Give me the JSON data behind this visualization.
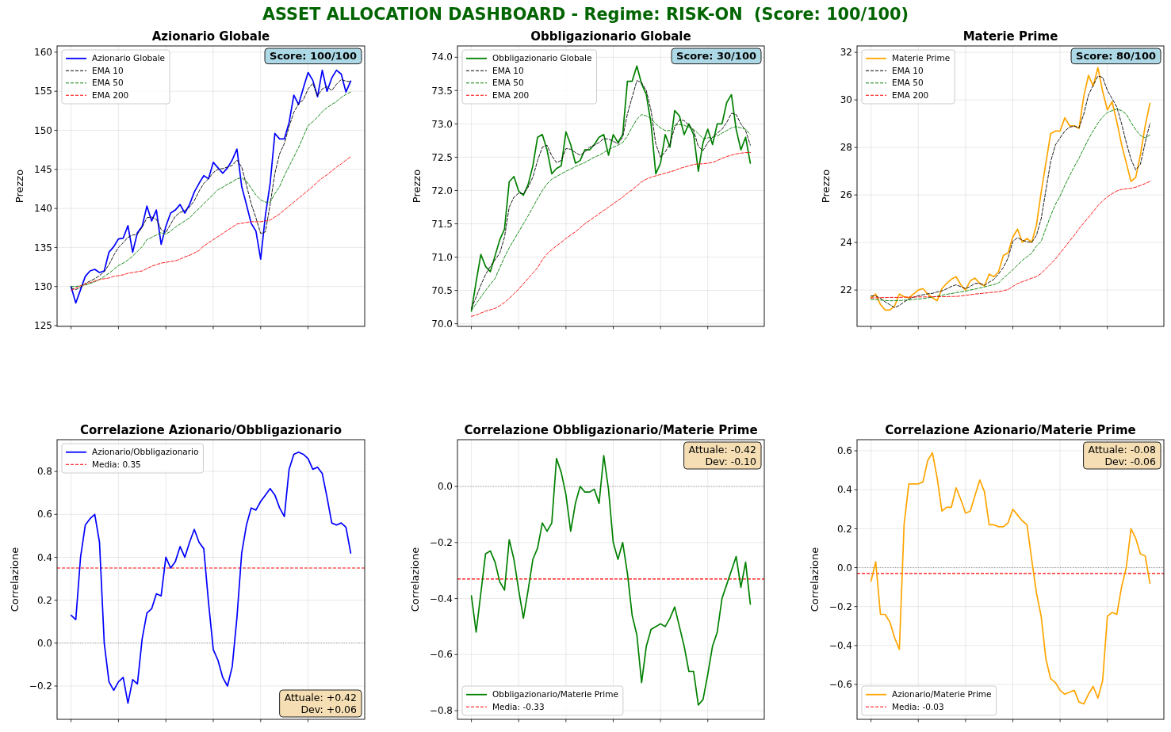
{
  "chart_data": [
    {
      "type": "other",
      "title": "ASSET ALLOCATION DASHBOARD - Regime: RISK-ON  (Score: 100/100)"
    },
    {
      "type": "line",
      "title": "Azionario Globale",
      "ylabel": "Prezzo",
      "categories": [
        null,
        null,
        null,
        null,
        null,
        null,
        null,
        null,
        null,
        null,
        null,
        null,
        null,
        null,
        null,
        null,
        null,
        null,
        null,
        null,
        null,
        null,
        null,
        null,
        null,
        null,
        null,
        null,
        null,
        null,
        null,
        null,
        null,
        null,
        null,
        null,
        null,
        null,
        null,
        null,
        null,
        null,
        null,
        null,
        null,
        null,
        null,
        null,
        null,
        null,
        null,
        null,
        null,
        null,
        null,
        null,
        null,
        null,
        null,
        null
      ],
      "series": [
        {
          "name": "Azionario Globale",
          "color": "#0000ff",
          "values": [
            130.0,
            127.9,
            129.6,
            131.3,
            132.0,
            132.2,
            131.8,
            132.0,
            134.4,
            135.1,
            136.1,
            136.2,
            137.8,
            134.4,
            136.9,
            137.7,
            140.3,
            138.4,
            139.8,
            135.4,
            137.7,
            139.4,
            139.8,
            140.5,
            139.4,
            140.5,
            142.1,
            143.2,
            144.2,
            143.8,
            145.9,
            145.2,
            144.5,
            145.2,
            146.2,
            147.6,
            142.8,
            140.5,
            138.1,
            137.1,
            133.5,
            139.1,
            143.2,
            149.6,
            148.9,
            148.9,
            151.0,
            154.5,
            153.3,
            155.4,
            157.4,
            156.4,
            154.3,
            157.7,
            155.0,
            156.7,
            157.7,
            157.2,
            154.9,
            156.3
          ]
        },
        {
          "name": "EMA 10",
          "color": "#000000",
          "line_style": "dashed",
          "values": [
            129.8,
            129.6,
            129.9,
            130.4,
            130.7,
            131.0,
            131.4,
            131.9,
            132.8,
            134.0,
            135.0,
            135.6,
            136.3,
            136.6,
            136.7,
            137.6,
            138.8,
            138.9,
            138.6,
            137.3,
            136.9,
            138.0,
            139.0,
            139.5,
            139.7,
            140.2,
            141.0,
            142.2,
            143.2,
            143.8,
            144.6,
            145.0,
            145.1,
            145.3,
            145.5,
            146.2,
            145.3,
            143.0,
            140.6,
            138.8,
            136.8,
            137.0,
            140.5,
            144.5,
            147.0,
            148.3,
            150.5,
            152.3,
            153.4,
            153.9,
            155.3,
            156.0,
            154.4,
            155.3,
            155.6,
            155.1,
            155.9,
            156.5,
            156.3,
            156.2
          ]
        },
        {
          "name": "EMA 50",
          "color": "#008000",
          "line_style": "dashed",
          "values": [
            130.0,
            130.0,
            130.1,
            130.2,
            130.4,
            130.6,
            130.9,
            131.3,
            131.7,
            132.2,
            132.7,
            133.0,
            133.4,
            133.9,
            134.5,
            135.1,
            136.0,
            136.3,
            136.6,
            136.9,
            136.7,
            137.1,
            137.6,
            138.0,
            138.4,
            138.8,
            139.4,
            140.0,
            140.6,
            141.2,
            141.8,
            142.4,
            142.7,
            143.1,
            143.4,
            143.8,
            143.9,
            143.5,
            142.6,
            141.7,
            141.1,
            140.8,
            140.8,
            141.9,
            142.8,
            144.2,
            145.4,
            146.6,
            147.8,
            149.2,
            150.6,
            151.1,
            151.7,
            152.4,
            152.9,
            153.3,
            153.7,
            154.2,
            154.6,
            154.9
          ]
        },
        {
          "name": "EMA 200",
          "color": "#ff0000",
          "line_style": "dashed",
          "values": [
            129.5,
            129.8,
            130.1,
            130.3,
            130.5,
            130.7,
            130.9,
            131.0,
            131.1,
            131.3,
            131.4,
            131.5,
            131.7,
            131.8,
            131.9,
            132.0,
            132.3,
            132.6,
            132.8,
            133.0,
            133.1,
            133.2,
            133.3,
            133.5,
            133.8,
            134.0,
            134.3,
            134.6,
            135.2,
            135.6,
            136.0,
            136.4,
            136.8,
            137.2,
            137.6,
            138.0,
            138.1,
            138.2,
            138.3,
            138.3,
            138.3,
            138.4,
            138.5,
            138.9,
            139.3,
            139.8,
            140.3,
            140.8,
            141.3,
            141.8,
            142.3,
            142.8,
            143.4,
            143.9,
            144.3,
            144.8,
            145.3,
            145.7,
            146.2,
            146.6
          ]
        }
      ],
      "ylim": [
        124.9,
        160.8
      ],
      "yticks": [
        125,
        130,
        135,
        140,
        145,
        150,
        155,
        160
      ],
      "grid": true,
      "legend": "top left",
      "annotations": [
        "Score: 100/100"
      ]
    },
    {
      "type": "line",
      "title": "Obbligazionario Globale",
      "ylabel": "Prezzo",
      "categories": [
        null,
        null,
        null,
        null,
        null,
        null,
        null,
        null,
        null,
        null,
        null,
        null,
        null,
        null,
        null,
        null,
        null,
        null,
        null,
        null,
        null,
        null,
        null,
        null,
        null,
        null,
        null,
        null,
        null,
        null,
        null,
        null,
        null,
        null,
        null,
        null,
        null,
        null,
        null,
        null,
        null,
        null,
        null,
        null,
        null,
        null,
        null,
        null,
        null,
        null,
        null,
        null,
        null,
        null,
        null,
        null,
        null,
        null,
        null,
        null
      ],
      "series": [
        {
          "name": "Obbligazionario Globale",
          "color": "#008000",
          "values": [
            70.19,
            70.63,
            71.04,
            70.86,
            70.78,
            71.02,
            71.26,
            71.42,
            72.13,
            72.21,
            71.99,
            71.93,
            72.09,
            72.37,
            72.8,
            72.84,
            72.61,
            72.25,
            72.33,
            72.37,
            72.88,
            72.69,
            72.41,
            72.45,
            72.61,
            72.61,
            72.69,
            72.8,
            72.84,
            72.53,
            72.84,
            72.72,
            72.84,
            73.64,
            73.64,
            73.87,
            73.6,
            73.44,
            73.0,
            72.25,
            72.41,
            72.84,
            72.65,
            73.2,
            73.12,
            72.84,
            73.0,
            72.84,
            72.29,
            72.72,
            72.92,
            72.69,
            73.0,
            73.0,
            73.32,
            73.44,
            72.92,
            72.61,
            72.8,
            72.41
          ]
        },
        {
          "name": "EMA 10",
          "color": "#000000",
          "line_style": "dashed",
          "values": [
            70.23,
            70.4,
            70.58,
            70.74,
            70.86,
            70.96,
            71.06,
            71.3,
            71.75,
            71.9,
            71.96,
            71.95,
            72.05,
            72.2,
            72.45,
            72.65,
            72.68,
            72.52,
            72.42,
            72.45,
            72.63,
            72.62,
            72.57,
            72.53,
            72.58,
            72.65,
            72.68,
            72.72,
            72.78,
            72.77,
            72.74,
            72.7,
            72.8,
            73.15,
            73.4,
            73.65,
            73.62,
            73.5,
            73.2,
            72.7,
            72.5,
            72.58,
            72.7,
            72.95,
            73.06,
            73.05,
            72.98,
            72.9,
            72.66,
            72.6,
            72.72,
            72.8,
            72.86,
            72.92,
            73.02,
            73.16,
            73.14,
            73.0,
            72.9,
            72.68
          ]
        },
        {
          "name": "EMA 50",
          "color": "#008000",
          "line_style": "dashed",
          "values": [
            70.2,
            70.3,
            70.4,
            70.5,
            70.59,
            70.68,
            70.84,
            71.0,
            71.14,
            71.26,
            71.38,
            71.5,
            71.62,
            71.75,
            71.88,
            72.0,
            72.1,
            72.17,
            72.21,
            72.25,
            72.29,
            72.32,
            72.36,
            72.39,
            72.42,
            72.46,
            72.5,
            72.53,
            72.57,
            72.61,
            72.65,
            72.68,
            72.72,
            72.82,
            72.95,
            73.07,
            73.14,
            73.12,
            73.08,
            73.0,
            72.94,
            72.9,
            72.9,
            72.98,
            72.99,
            72.98,
            72.95,
            72.92,
            72.85,
            72.78,
            72.79,
            72.8,
            72.82,
            72.86,
            72.9,
            72.94,
            72.96,
            72.94,
            72.92,
            72.84
          ]
        },
        {
          "name": "EMA 200",
          "color": "#ff0000",
          "line_style": "dashed",
          "values": [
            70.11,
            70.13,
            70.16,
            70.19,
            70.21,
            70.23,
            70.27,
            70.32,
            70.38,
            70.45,
            70.52,
            70.6,
            70.68,
            70.76,
            70.84,
            70.96,
            71.05,
            71.11,
            71.17,
            71.22,
            71.28,
            71.33,
            71.38,
            71.44,
            71.5,
            71.55,
            71.6,
            71.65,
            71.7,
            71.75,
            71.8,
            71.85,
            71.9,
            71.96,
            72.01,
            72.07,
            72.13,
            72.17,
            72.2,
            72.22,
            72.24,
            72.26,
            72.28,
            72.3,
            72.33,
            72.35,
            72.37,
            72.39,
            72.4,
            72.4,
            72.41,
            72.42,
            72.45,
            72.48,
            72.51,
            72.53,
            72.55,
            72.56,
            72.57,
            72.57
          ]
        }
      ],
      "ylim": [
        69.96,
        74.17
      ],
      "yticks": [
        {
          "value": 70,
          "label": "70.0"
        },
        70.5,
        {
          "value": 71,
          "label": "71.0"
        },
        71.5,
        {
          "value": 72,
          "label": "72.0"
        },
        72.5,
        {
          "value": 73,
          "label": "73.0"
        },
        73.5,
        {
          "value": 74,
          "label": "74.0"
        }
      ],
      "grid": true,
      "legend": "top left",
      "annotations": [
        "Score: 30/100"
      ]
    },
    {
      "type": "line",
      "title": "Materie Prime",
      "ylabel": "Prezzo",
      "categories": [
        null,
        null,
        null,
        null,
        null,
        null,
        null,
        null,
        null,
        null,
        null,
        null,
        null,
        null,
        null,
        null,
        null,
        null,
        null,
        null,
        null,
        null,
        null,
        null,
        null,
        null,
        null,
        null,
        null,
        null,
        null,
        null,
        null,
        null,
        null,
        null,
        null,
        null,
        null,
        null,
        null,
        null,
        null,
        null,
        null,
        null,
        null,
        null,
        null,
        null,
        null,
        null,
        null,
        null,
        null,
        null,
        null,
        null,
        null,
        null
      ],
      "series": [
        {
          "name": "Materie Prime",
          "color": "#ffa500",
          "values": [
            21.67,
            21.83,
            21.39,
            21.16,
            21.16,
            21.33,
            21.83,
            21.72,
            21.67,
            21.83,
            22.0,
            22.06,
            21.83,
            21.67,
            21.55,
            22.06,
            22.28,
            22.45,
            22.56,
            22.22,
            22.0,
            22.39,
            22.5,
            22.28,
            22.17,
            22.67,
            22.56,
            22.78,
            23.45,
            23.56,
            24.23,
            24.56,
            24.01,
            24.17,
            24.01,
            24.73,
            26.12,
            27.35,
            28.58,
            28.69,
            28.69,
            29.25,
            28.91,
            28.91,
            28.8,
            30.14,
            31.03,
            30.58,
            31.36,
            30.36,
            29.58,
            29.92,
            29.08,
            28.13,
            27.35,
            26.57,
            26.74,
            27.69,
            28.91,
            29.86
          ]
        },
        {
          "name": "EMA 10",
          "color": "#000000",
          "line_style": "dashed",
          "values": [
            21.75,
            21.75,
            21.65,
            21.5,
            21.38,
            21.26,
            21.35,
            21.5,
            21.62,
            21.7,
            21.76,
            21.8,
            21.84,
            21.86,
            21.92,
            21.96,
            22.05,
            22.15,
            22.22,
            22.14,
            22.06,
            22.15,
            22.28,
            22.28,
            22.2,
            22.33,
            22.45,
            22.68,
            22.95,
            23.35,
            24.05,
            24.2,
            24.1,
            24.03,
            24.0,
            24.3,
            25.0,
            26.2,
            27.4,
            28.1,
            28.4,
            28.69,
            28.85,
            28.9,
            28.82,
            29.4,
            30.2,
            30.62,
            31.0,
            30.95,
            30.4,
            30.05,
            29.7,
            29.0,
            28.2,
            27.5,
            27.05,
            27.3,
            28.2,
            29.02
          ]
        },
        {
          "name": "EMA 50",
          "color": "#008000",
          "line_style": "dashed",
          "values": [
            21.61,
            21.6,
            21.58,
            21.56,
            21.55,
            21.55,
            21.56,
            21.57,
            21.58,
            21.6,
            21.62,
            21.64,
            21.67,
            21.7,
            21.74,
            21.78,
            21.82,
            21.85,
            21.89,
            21.92,
            21.95,
            22.0,
            22.04,
            22.09,
            22.13,
            22.18,
            22.23,
            22.3,
            22.5,
            22.67,
            22.85,
            23.05,
            23.25,
            23.4,
            23.55,
            23.85,
            24.05,
            24.6,
            25.12,
            25.6,
            25.95,
            26.4,
            26.8,
            27.2,
            27.55,
            27.95,
            28.35,
            28.7,
            29.02,
            29.28,
            29.47,
            29.55,
            29.62,
            29.55,
            29.4,
            29.05,
            28.75,
            28.5,
            28.4,
            28.52
          ]
        },
        {
          "name": "EMA 200",
          "color": "#ff0000",
          "line_style": "dashed",
          "values": [
            21.67,
            21.67,
            21.68,
            21.68,
            21.69,
            21.69,
            21.69,
            21.7,
            21.7,
            21.7,
            21.71,
            21.71,
            21.71,
            21.72,
            21.72,
            21.72,
            21.72,
            21.73,
            21.73,
            21.75,
            21.78,
            21.8,
            21.83,
            21.85,
            21.87,
            21.89,
            21.91,
            21.93,
            21.97,
            22.02,
            22.15,
            22.27,
            22.35,
            22.42,
            22.5,
            22.56,
            22.7,
            22.9,
            23.1,
            23.3,
            23.55,
            23.8,
            24.06,
            24.3,
            24.58,
            24.82,
            25.05,
            25.3,
            25.55,
            25.75,
            25.92,
            26.05,
            26.17,
            26.23,
            26.26,
            26.28,
            26.33,
            26.4,
            26.48,
            26.57
          ]
        }
      ],
      "ylim": [
        20.47,
        32.27
      ],
      "yticks": [
        22,
        24,
        26,
        28,
        30,
        32
      ],
      "grid": true,
      "legend": "top left",
      "annotations": [
        "Score: 80/100"
      ]
    },
    {
      "type": "line",
      "title": "Correlazione Azionario/Obbligazionario",
      "ylabel": "Correlazione",
      "categories": [
        null,
        null,
        null,
        null,
        null,
        null,
        null,
        null,
        null,
        null,
        null,
        null,
        null,
        null,
        null,
        null,
        null,
        null,
        null,
        null,
        null,
        null,
        null,
        null,
        null,
        null,
        null,
        null,
        null,
        null,
        null,
        null,
        null,
        null,
        null,
        null,
        null,
        null,
        null,
        null,
        null,
        null,
        null,
        null,
        null,
        null,
        null,
        null,
        null,
        null,
        null,
        null,
        null,
        null,
        null,
        null,
        null,
        null,
        null,
        null
      ],
      "series": [
        {
          "name": "Azionario/Obbligazionario",
          "color": "#0000ff",
          "values": [
            0.13,
            0.11,
            0.4,
            0.55,
            0.58,
            0.6,
            0.47,
            0.0,
            -0.18,
            -0.22,
            -0.18,
            -0.16,
            -0.28,
            -0.17,
            -0.19,
            0.02,
            0.14,
            0.16,
            0.23,
            0.22,
            0.4,
            0.35,
            0.38,
            0.45,
            0.4,
            0.47,
            0.53,
            0.47,
            0.44,
            0.19,
            -0.03,
            -0.08,
            -0.16,
            -0.2,
            -0.11,
            0.12,
            0.42,
            0.55,
            0.63,
            0.62,
            0.66,
            0.69,
            0.72,
            0.69,
            0.63,
            0.59,
            0.81,
            0.88,
            0.89,
            0.88,
            0.86,
            0.81,
            0.82,
            0.79,
            0.68,
            0.56,
            0.55,
            0.56,
            0.54,
            0.42
          ]
        }
      ],
      "ylim": [
        -0.355,
        0.948
      ],
      "yticks": [
        -0.2,
        {
          "value": 0,
          "label": "0.0"
        },
        0.2,
        0.4,
        0.6,
        0.8
      ],
      "grid": true,
      "legend": "top left",
      "ref_lines": [
        {
          "axis": "y",
          "value": 0,
          "color": "#808080",
          "line_style": "dotted"
        },
        {
          "axis": "y",
          "value": 0.35,
          "label": "Media: 0.35",
          "color": "#ff0000",
          "line_style": "dashed"
        }
      ],
      "annotations": [
        "Attuale: +0.42",
        "Dev: +0.06"
      ]
    },
    {
      "type": "line",
      "title": "Correlazione Obbligazionario/Materie Prime",
      "ylabel": "Correlazione",
      "categories": [
        null,
        null,
        null,
        null,
        null,
        null,
        null,
        null,
        null,
        null,
        null,
        null,
        null,
        null,
        null,
        null,
        null,
        null,
        null,
        null,
        null,
        null,
        null,
        null,
        null,
        null,
        null,
        null,
        null,
        null,
        null,
        null,
        null,
        null,
        null,
        null,
        null,
        null,
        null,
        null,
        null,
        null,
        null,
        null,
        null,
        null,
        null,
        null,
        null,
        null,
        null,
        null,
        null,
        null,
        null,
        null,
        null,
        null,
        null,
        null
      ],
      "series": [
        {
          "name": "Obbligazionario/Materie Prime",
          "color": "#008000",
          "values": [
            -0.39,
            -0.52,
            -0.38,
            -0.24,
            -0.23,
            -0.27,
            -0.34,
            -0.37,
            -0.19,
            -0.26,
            -0.37,
            -0.47,
            -0.37,
            -0.26,
            -0.22,
            -0.13,
            -0.16,
            -0.13,
            0.1,
            0.05,
            -0.03,
            -0.16,
            -0.06,
            0.0,
            -0.02,
            -0.02,
            -0.01,
            -0.06,
            0.11,
            -0.01,
            -0.2,
            -0.26,
            -0.2,
            -0.31,
            -0.46,
            -0.53,
            -0.7,
            -0.57,
            -0.51,
            -0.5,
            -0.49,
            -0.5,
            -0.47,
            -0.43,
            -0.5,
            -0.57,
            -0.66,
            -0.66,
            -0.78,
            -0.76,
            -0.67,
            -0.57,
            -0.52,
            -0.4,
            -0.35,
            -0.3,
            -0.25,
            -0.36,
            -0.27,
            -0.42
          ]
        }
      ],
      "ylim": [
        -0.831,
        0.167
      ],
      "yticks": [
        -0.8,
        -0.6,
        -0.4,
        -0.2,
        {
          "value": 0,
          "label": "0.0"
        }
      ],
      "grid": true,
      "legend": "bottom left",
      "ref_lines": [
        {
          "axis": "y",
          "value": 0,
          "color": "#808080",
          "line_style": "dotted"
        },
        {
          "axis": "y",
          "value": -0.33,
          "label": "Media: -0.33",
          "color": "#ff0000",
          "line_style": "dashed"
        }
      ],
      "annotations": [
        "Attuale: -0.42",
        "Dev: -0.10"
      ]
    },
    {
      "type": "line",
      "title": "Correlazione Azionario/Materie Prime",
      "ylabel": "Correlazione",
      "categories": [
        null,
        null,
        null,
        null,
        null,
        null,
        null,
        null,
        null,
        null,
        null,
        null,
        null,
        null,
        null,
        null,
        null,
        null,
        null,
        null,
        null,
        null,
        null,
        null,
        null,
        null,
        null,
        null,
        null,
        null,
        null,
        null,
        null,
        null,
        null,
        null,
        null,
        null,
        null,
        null,
        null,
        null,
        null,
        null,
        null,
        null,
        null,
        null,
        null,
        null,
        null,
        null,
        null,
        null,
        null,
        null,
        null,
        null,
        null,
        null
      ],
      "series": [
        {
          "name": "Azionario/Materie Prime",
          "color": "#ffa500",
          "values": [
            -0.07,
            0.03,
            -0.24,
            -0.24,
            -0.28,
            -0.36,
            -0.42,
            0.22,
            0.43,
            0.43,
            0.43,
            0.44,
            0.55,
            0.59,
            0.46,
            0.29,
            0.31,
            0.31,
            0.41,
            0.35,
            0.28,
            0.29,
            0.37,
            0.45,
            0.39,
            0.22,
            0.22,
            0.21,
            0.21,
            0.23,
            0.3,
            0.27,
            0.24,
            0.22,
            0.04,
            -0.13,
            -0.25,
            -0.47,
            -0.57,
            -0.59,
            -0.63,
            -0.65,
            -0.64,
            -0.63,
            -0.69,
            -0.7,
            -0.65,
            -0.61,
            -0.67,
            -0.58,
            -0.25,
            -0.23,
            -0.24,
            -0.1,
            0.0,
            0.2,
            0.15,
            0.07,
            0.06,
            -0.08
          ]
        }
      ],
      "ylim": [
        -0.779,
        0.657
      ],
      "yticks": [
        -0.6,
        -0.4,
        -0.2,
        {
          "value": 0,
          "label": "0.0"
        },
        0.2,
        0.4,
        0.6
      ],
      "grid": true,
      "legend": "bottom left",
      "ref_lines": [
        {
          "axis": "y",
          "value": 0,
          "color": "#808080",
          "line_style": "dotted"
        },
        {
          "axis": "y",
          "value": -0.03,
          "label": "Media: -0.03",
          "color": "#ff0000",
          "line_style": "dashed"
        }
      ],
      "annotations": [
        "Attuale: -0.08",
        "Dev: -0.06"
      ]
    }
  ]
}
